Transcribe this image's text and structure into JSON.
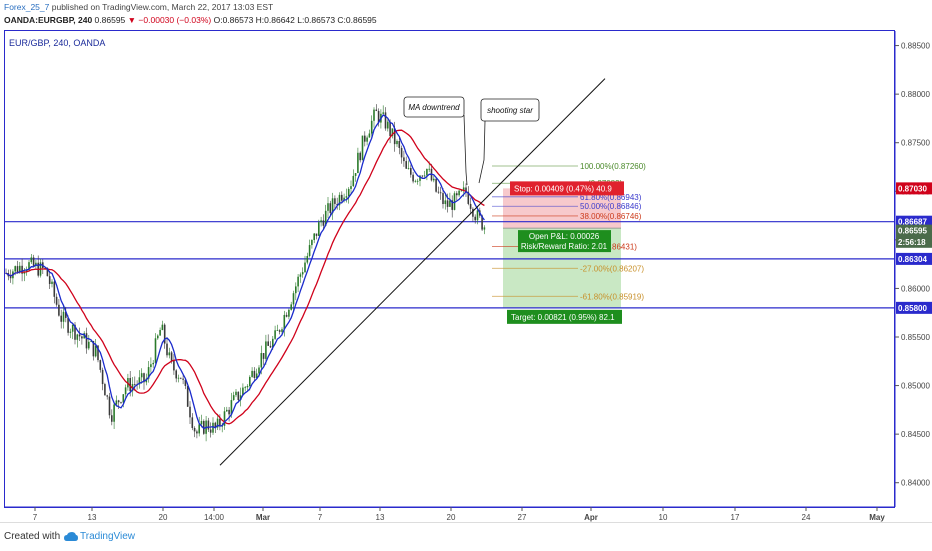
{
  "header": {
    "author": "Forex_25_7",
    "published_text": " published on TradingView.com, March 22, 2017 13:03 EST",
    "symbol": "OANDA:EURGBP, 240",
    "last": "0.86595",
    "change": "▼ −0.00030 (−0.03%)",
    "ohlc": "O:0.86573 H:0.86642 L:0.86573 C:0.86595"
  },
  "footer": {
    "created_with": "Created with",
    "brand": "TradingView",
    "brand_icon": "tradingview-cloud-icon"
  },
  "chart_data": {
    "type": "candlestick",
    "title": "EUR/GBP, 240, OANDA",
    "y_axis": {
      "ylim": [
        0.8375,
        0.8865
      ],
      "ticks": [
        "0.88500",
        "0.88000",
        "0.87500",
        "0.87000",
        "0.86500",
        "0.86000",
        "0.85500",
        "0.85000",
        "0.84500",
        "0.84000"
      ]
    },
    "x_axis": {
      "ticks": [
        "7",
        "13",
        "20",
        "14:00",
        "Mar",
        "7",
        "13",
        "20",
        "27",
        "Apr",
        "10",
        "17",
        "24",
        "May"
      ]
    },
    "price_labels": [
      {
        "value": 0.8703,
        "text": "0.87030",
        "color": "#d0021b"
      },
      {
        "value": 0.86687,
        "text": "0.86687",
        "color": "#2a2acc"
      },
      {
        "value": 0.86595,
        "text": "0.86595",
        "color": "#4a6b4a"
      },
      {
        "value": 0.8648,
        "text": "2:56:18",
        "color": "#4a6b4a"
      },
      {
        "value": 0.86304,
        "text": "0.86304",
        "color": "#2a2acc"
      },
      {
        "value": 0.858,
        "text": "0.85800",
        "color": "#2a2acc"
      }
    ],
    "horizontal_lines": [
      {
        "value": 0.86687,
        "color": "#2a2acc"
      },
      {
        "value": 0.86304,
        "color": "#2a2acc"
      },
      {
        "value": 0.858,
        "color": "#2a2acc"
      }
    ],
    "fibonacci": [
      {
        "text": "100.00%(0.87260)",
        "value": 0.8726,
        "color": "#4a8a2a"
      },
      {
        "text": "(0.87083)",
        "value": 0.87083,
        "color": "#4a8a2a"
      },
      {
        "text": "61.80%(0.86943)",
        "value": 0.86943,
        "color": "#3a3acc"
      },
      {
        "text": "50.00%(0.86846)",
        "value": 0.86846,
        "color": "#3a3acc"
      },
      {
        "text": "38.00%(0.86746)",
        "value": 0.86746,
        "color": "#cc3a1a"
      },
      {
        "text": "0.00%(0.86431)",
        "value": 0.86431,
        "color": "#cc3a1a"
      },
      {
        "text": "-27.00%(0.86207)",
        "value": 0.86207,
        "color": "#c8902a"
      },
      {
        "text": "-61.80%(0.85919)",
        "value": 0.85919,
        "color": "#c8902a"
      }
    ],
    "position": {
      "entry": 0.86621,
      "stop": 0.8703,
      "target": 0.858,
      "stop_label": "Stop: 0.00409 (0.47%) 40.9",
      "target_label": "Target: 0.00821 (0.95%) 82.1",
      "pnl_label": "Open P&L: 0.00026",
      "rr_label": "Risk/Reward Ratio: 2.01"
    },
    "annotations": [
      {
        "text": "MA downtrend"
      },
      {
        "text": "shooting star"
      }
    ],
    "series": [
      {
        "name": "EUR/GBP 240",
        "close_path": [
          [
            0,
            0.8616
          ],
          [
            20,
            0.8625
          ],
          [
            40,
            0.8618
          ],
          [
            55,
            0.857
          ],
          [
            70,
            0.8555
          ],
          [
            90,
            0.8535
          ],
          [
            105,
            0.847
          ],
          [
            120,
            0.85
          ],
          [
            140,
            0.8505
          ],
          [
            155,
            0.856
          ],
          [
            165,
            0.852
          ],
          [
            175,
            0.851
          ],
          [
            190,
            0.845
          ],
          [
            200,
            0.846
          ],
          [
            210,
            0.8455
          ],
          [
            225,
            0.848
          ],
          [
            240,
            0.85
          ],
          [
            255,
            0.853
          ],
          [
            270,
            0.855
          ],
          [
            285,
            0.859
          ],
          [
            300,
            0.863
          ],
          [
            315,
            0.867
          ],
          [
            330,
            0.869
          ],
          [
            345,
            0.871
          ],
          [
            360,
            0.876
          ],
          [
            370,
            0.878
          ],
          [
            380,
            0.877
          ],
          [
            392,
            0.8745
          ],
          [
            400,
            0.872
          ],
          [
            410,
            0.8715
          ],
          [
            420,
            0.8725
          ],
          [
            430,
            0.87
          ],
          [
            440,
            0.8685
          ],
          [
            450,
            0.869
          ],
          [
            460,
            0.87
          ],
          [
            470,
            0.8675
          ],
          [
            478,
            0.8665
          ],
          [
            485,
            0.86595
          ]
        ]
      },
      {
        "name": "MA fast",
        "color": "#1a2acc"
      },
      {
        "name": "MA slow",
        "color": "#d0021b"
      }
    ],
    "trendline": {
      "from": [
        220,
        0.8418
      ],
      "to": [
        605,
        0.8816
      ]
    }
  }
}
